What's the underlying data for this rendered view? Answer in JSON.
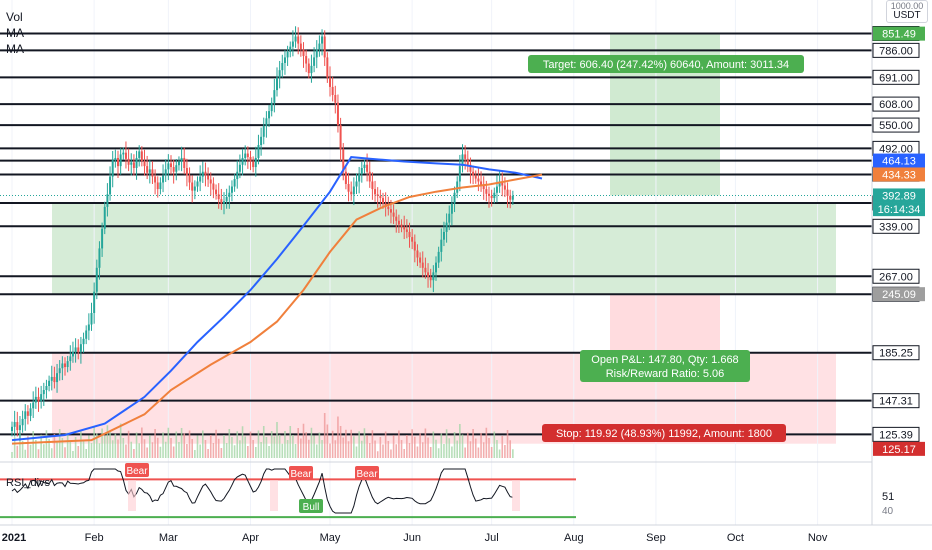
{
  "header": {
    "currency_top": "1000.00",
    "currency": "USDT",
    "legend": [
      "Vol",
      "MA",
      "MA"
    ]
  },
  "colors": {
    "up": "#26a69a",
    "down": "#ef5350",
    "ma_slow": "#2962ff",
    "ma_fast": "#f0803c",
    "profit_zone": "#c8e6c9",
    "loss_zone": "#ffcdd2",
    "target_box": "#4caf50",
    "stop_box": "#d32f2f",
    "rsi_line": "#131722",
    "rsi_upper": "#ef5350",
    "rsi_lower": "#4caf50"
  },
  "chart_data": {
    "type": "candlestick",
    "x_labels": [
      "2021",
      "Feb",
      "Mar",
      "Apr",
      "May",
      "Jun",
      "Jul",
      "Aug",
      "Sep",
      "Oct",
      "Nov"
    ],
    "x_label_days": [
      0,
      31,
      59,
      90,
      120,
      151,
      181,
      212,
      243,
      273,
      304
    ],
    "y_scale": "log",
    "ylim": [
      112,
      1000
    ],
    "levels": [
      852.0,
      786.0,
      691.0,
      608.0,
      550.0,
      492.0,
      435.0,
      379.0,
      339.0,
      267.0,
      245.0,
      185.25,
      147.31,
      125.39
    ],
    "level_lines": [
      852.0,
      786.0,
      691.0,
      608.0,
      550.0,
      492.0,
      464.13,
      434.33,
      379.0,
      339.0,
      267.0,
      245.0,
      185.25,
      147.31,
      125.39
    ],
    "badges": [
      {
        "value": "851.49",
        "style": "green"
      },
      {
        "value": "464.13",
        "style": "blue"
      },
      {
        "value": "434.33",
        "style": "orange"
      },
      {
        "value": "392.89",
        "style": "current"
      },
      {
        "value": "16:14:34",
        "style": "current"
      },
      {
        "value": "245.09",
        "style": "gray"
      },
      {
        "value": "125.17",
        "style": "red"
      }
    ],
    "closes": [
      130,
      133,
      128,
      131,
      135,
      140,
      137,
      142,
      146,
      150,
      147,
      152,
      155,
      158,
      162,
      165,
      161,
      168,
      172,
      176,
      173,
      178,
      182,
      186,
      190,
      186,
      193,
      198,
      206,
      212,
      224,
      248,
      278,
      305,
      335,
      372,
      395,
      430,
      465,
      470,
      452,
      478,
      482,
      468,
      455,
      460,
      448,
      470,
      485,
      463,
      452,
      438,
      445,
      430,
      418,
      405,
      418,
      432,
      445,
      458,
      450,
      440,
      454,
      462,
      470,
      448,
      432,
      418,
      402,
      410,
      420,
      430,
      440,
      432,
      424,
      416,
      404,
      395,
      386,
      378,
      382,
      390,
      398,
      410,
      425,
      440,
      455,
      470,
      480,
      472,
      462,
      450,
      470,
      500,
      520,
      548,
      568,
      588,
      612,
      650,
      690,
      715,
      740,
      760,
      780,
      800,
      820,
      840,
      812,
      790,
      765,
      738,
      705,
      730,
      760,
      790,
      812,
      840,
      760,
      690,
      660,
      635,
      612,
      550,
      490,
      440,
      415,
      400,
      395,
      410,
      420,
      435,
      448,
      455,
      440,
      420,
      405,
      395,
      392,
      388,
      378,
      372,
      368,
      362,
      355,
      348,
      342,
      338,
      334,
      330,
      322,
      315,
      302,
      292,
      285,
      278,
      272,
      266,
      262,
      272,
      285,
      300,
      318,
      330,
      345,
      360,
      378,
      398,
      420,
      452,
      478,
      468,
      455,
      440,
      432,
      426,
      420,
      412,
      405,
      396,
      392,
      388,
      398,
      410,
      420,
      412,
      404,
      392,
      385,
      392
    ],
    "ma_slow": [
      [
        0,
        122
      ],
      [
        20,
        125
      ],
      [
        35,
        132
      ],
      [
        50,
        150
      ],
      [
        60,
        170
      ],
      [
        70,
        195
      ],
      [
        80,
        220
      ],
      [
        90,
        250
      ],
      [
        100,
        290
      ],
      [
        110,
        340
      ],
      [
        120,
        400
      ],
      [
        128,
        472
      ],
      [
        135,
        468
      ],
      [
        148,
        462
      ],
      [
        160,
        458
      ],
      [
        170,
        455
      ],
      [
        180,
        445
      ],
      [
        190,
        438
      ],
      [
        200,
        426
      ]
    ],
    "ma_fast": [
      [
        0,
        120
      ],
      [
        30,
        122
      ],
      [
        50,
        138
      ],
      [
        60,
        155
      ],
      [
        75,
        175
      ],
      [
        90,
        195
      ],
      [
        100,
        215
      ],
      [
        110,
        250
      ],
      [
        120,
        300
      ],
      [
        130,
        350
      ],
      [
        140,
        372
      ],
      [
        150,
        390
      ],
      [
        160,
        400
      ],
      [
        170,
        408
      ],
      [
        180,
        414
      ],
      [
        190,
        424
      ],
      [
        200,
        434
      ]
    ],
    "target_label": "Target: 606.40 (247.42%) 60640, Amount: 3011.34",
    "pnl_label": "Open P&L: 147.80, Qty: 1.668",
    "rr_label": "Risk/Reward Ratio: 5.06",
    "stop_label": "Stop: 119.92 (48.93%) 11992, Amount: 1800",
    "rsi": {
      "title": "RSI_divs",
      "value": "51",
      "levels": [
        "70",
        "40"
      ],
      "badges": [
        "Bear",
        "Bear",
        "Bear",
        "Bull"
      ]
    }
  }
}
